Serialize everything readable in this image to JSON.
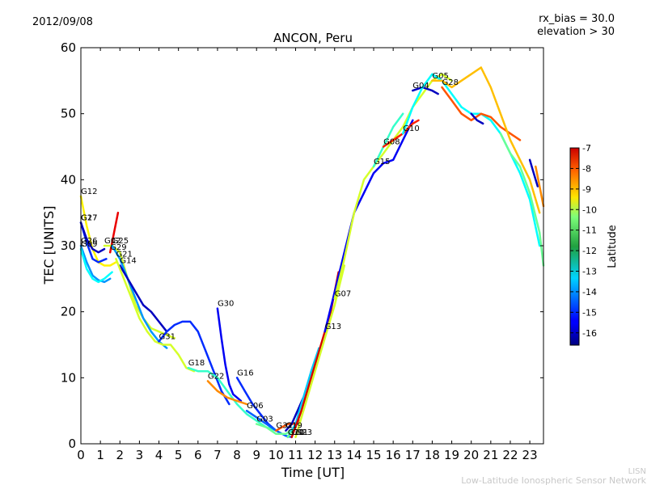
{
  "header": {
    "date": "2012/09/08",
    "rx_bias": "rx_bias = 30.0",
    "elevation": "elevation > 30"
  },
  "footer": {
    "org_abbrev": "LISN",
    "org_name": "Low-Latitude Ionospheric Sensor Network"
  },
  "chart_data": {
    "type": "line",
    "title": "ANCON, Peru",
    "xlabel": "Time [UT]",
    "ylabel": "TEC [UNITS]",
    "xlim": [
      0,
      23.7
    ],
    "ylim": [
      0,
      60
    ],
    "xticks": [
      0,
      1,
      2,
      3,
      4,
      5,
      6,
      7,
      8,
      9,
      10,
      11,
      12,
      13,
      14,
      15,
      16,
      17,
      18,
      19,
      20,
      21,
      22,
      23
    ],
    "yticks": [
      0,
      10,
      20,
      30,
      40,
      50,
      60
    ],
    "grid": false,
    "colorbar": {
      "label": "Latitude",
      "min": -16.6,
      "max": -7,
      "ticks": [
        -7,
        -8,
        -9,
        -10,
        -11,
        -12,
        -13,
        -14,
        -15,
        -16
      ],
      "colormap": "jet"
    },
    "series": [
      {
        "name": "G12",
        "lat": -10.5,
        "x": [
          0,
          0.3,
          0.6,
          0.9,
          1.2,
          1.5,
          1.8
        ],
        "y": [
          37.5,
          33,
          29.5,
          27.5,
          27,
          27,
          27.5
        ]
      },
      {
        "name": "G27",
        "lat": -15.0,
        "x": [
          0,
          0.3,
          0.6,
          0.9,
          1.3
        ],
        "y": [
          33.5,
          30.5,
          28,
          27.5,
          28
        ]
      },
      {
        "name": "G17",
        "lat": -16.0,
        "x": [
          0,
          0.3,
          0.6,
          0.9,
          1.2
        ],
        "y": [
          33.5,
          31,
          29.5,
          29,
          29.5
        ]
      },
      {
        "name": "G26",
        "lat": -14.0,
        "x": [
          0,
          0.3,
          0.6,
          0.9,
          1.2,
          1.5
        ],
        "y": [
          30,
          27.5,
          25.5,
          24.8,
          24.5,
          25
        ]
      },
      {
        "name": "G09",
        "lat": -13.0,
        "x": [
          0,
          0.3,
          0.6,
          0.9,
          1.2,
          1.6
        ],
        "y": [
          29.5,
          26.5,
          25,
          24.5,
          25,
          26
        ]
      },
      {
        "name": "G29",
        "lat": -8.0,
        "x": [
          1.5,
          1.7,
          1.9
        ],
        "y": [
          29,
          32,
          35
        ]
      },
      {
        "name": "G02",
        "lat": -11.0,
        "x": [
          1.2,
          1.6,
          2.0,
          2.4,
          2.8,
          3.2,
          3.6,
          4.0,
          4.4,
          4.8
        ],
        "y": [
          30,
          30,
          29,
          25,
          21,
          19,
          17.5,
          17,
          16.5,
          16
        ]
      },
      {
        "name": "G25",
        "lat": -14.0,
        "x": [
          1.6,
          2.0,
          2.4,
          2.8,
          3.2,
          3.6,
          4.0,
          4.4
        ],
        "y": [
          30,
          28,
          25,
          22,
          19,
          17,
          15.5,
          14.5
        ]
      },
      {
        "name": "G14",
        "lat": -16.0,
        "x": [
          2.0,
          2.4,
          2.8,
          3.2,
          3.6,
          4.0,
          4.4
        ],
        "y": [
          27,
          25,
          23,
          21,
          20,
          18.5,
          17
        ]
      },
      {
        "name": "G21",
        "lat": -11.0,
        "x": [
          1.8,
          2.2,
          2.6,
          3.0,
          3.4,
          3.8,
          4.2,
          4.6,
          5.0,
          5.4,
          5.8
        ],
        "y": [
          28,
          25,
          22,
          19,
          17,
          15.5,
          15,
          15,
          13.5,
          11.5,
          11
        ]
      },
      {
        "name": "G31",
        "lat": -15.0,
        "x": [
          4.0,
          4.4,
          4.8,
          5.2,
          5.6,
          6.0,
          6.4,
          6.8,
          7.2,
          7.6
        ],
        "y": [
          15.5,
          17,
          18,
          18.5,
          18.5,
          17,
          14,
          11,
          8,
          6
        ]
      },
      {
        "name": "G18",
        "lat": -12.5,
        "x": [
          5.5,
          6.0,
          6.5,
          7.0,
          7.5,
          8.0,
          8.5,
          9.0,
          9.5,
          10.0
        ],
        "y": [
          11.5,
          11,
          11,
          10,
          8,
          6,
          4.5,
          3.5,
          2.5,
          2
        ]
      },
      {
        "name": "G30",
        "lat": -15.5,
        "x": [
          7.0,
          7.2,
          7.4,
          7.6,
          7.8,
          8.0,
          8.2
        ],
        "y": [
          20.5,
          16,
          12,
          9,
          7.5,
          7,
          6.5
        ]
      },
      {
        "name": "G22",
        "lat": -9.5,
        "x": [
          6.5,
          7.0,
          7.5,
          8.0,
          8.5
        ],
        "y": [
          9.5,
          8,
          7,
          6.5,
          6
        ]
      },
      {
        "name": "G16",
        "lat": -15.0,
        "x": [
          8.0,
          8.4,
          8.8,
          9.2,
          9.6,
          10.0
        ],
        "y": [
          10,
          8,
          6,
          4.5,
          3,
          2
        ]
      },
      {
        "name": "G06",
        "lat": -14.5,
        "x": [
          8.5,
          9.0,
          9.5,
          10.0,
          10.5,
          10.8
        ],
        "y": [
          5,
          4,
          3,
          2,
          1.2,
          1
        ]
      },
      {
        "name": "G03",
        "lat": -12.0,
        "x": [
          9.0,
          9.5,
          10.0,
          10.5,
          11.0
        ],
        "y": [
          3,
          2.5,
          1.5,
          1.5,
          2.5
        ]
      },
      {
        "name": "G32",
        "lat": -9.0,
        "x": [
          10.0,
          10.3,
          10.6,
          10.9,
          11.2
        ],
        "y": [
          2,
          2.5,
          3,
          3,
          3.5
        ]
      },
      {
        "name": "G19",
        "lat": -16.0,
        "x": [
          10.5,
          10.8,
          11.1,
          11.4
        ],
        "y": [
          2,
          3,
          5,
          7
        ]
      },
      {
        "name": "G11",
        "lat": -13.5,
        "x": [
          10.6,
          11.0,
          11.4,
          11.8,
          12.2
        ],
        "y": [
          1,
          3,
          7,
          11,
          14.5
        ]
      },
      {
        "name": "G20",
        "lat": -12.0,
        "x": [
          10.6,
          11.0,
          11.4,
          11.8,
          12.2
        ],
        "y": [
          1,
          2.5,
          6,
          10,
          14
        ]
      },
      {
        "name": "G01",
        "lat": -7.8,
        "x": [
          10.8,
          11.3,
          11.8,
          12.3,
          12.8,
          13.2
        ],
        "y": [
          1,
          5,
          10,
          15,
          20,
          26
        ]
      },
      {
        "name": "G23",
        "lat": -11.0,
        "x": [
          11.0,
          11.5,
          12.0,
          12.5,
          13.0,
          13.5
        ],
        "y": [
          1,
          6,
          11,
          16,
          21,
          27
        ]
      },
      {
        "name": "G13",
        "lat": -15.5,
        "x": [
          12.5,
          13.0,
          13.5,
          14.0,
          14.5,
          15.0,
          15.5,
          16.0,
          16.5,
          17.0
        ],
        "y": [
          17,
          23,
          29,
          35,
          38,
          41,
          42.5,
          43,
          46,
          49
        ]
      },
      {
        "name": "G07",
        "lat": -11.0,
        "x": [
          13.0,
          13.5,
          14.0,
          14.5,
          15.0,
          15.5,
          16.0,
          16.5,
          17.0,
          17.5,
          18.0,
          18.5,
          19.0
        ],
        "y": [
          22,
          28,
          35,
          40,
          42,
          44,
          46,
          48,
          51,
          53,
          55,
          56,
          55
        ]
      },
      {
        "name": "G15",
        "lat": -12.5,
        "x": [
          15.0,
          15.5,
          16.0,
          16.5
        ],
        "y": [
          42,
          45,
          48,
          50
        ]
      },
      {
        "name": "G08",
        "lat": -8.5,
        "x": [
          15.5,
          16.0,
          16.5,
          17.0,
          17.3
        ],
        "y": [
          45,
          46,
          47,
          48.5,
          49
        ]
      },
      {
        "name": "G04",
        "lat": -16.0,
        "x": [
          17.0,
          17.5,
          18.0,
          18.3
        ],
        "y": [
          53.5,
          54,
          53.5,
          53
        ]
      },
      {
        "name": "G10",
        "lat": -13.0,
        "x": [
          16.5,
          17.0,
          17.5,
          18.0,
          18.5,
          19.0,
          19.5,
          20.0,
          20.5,
          21.0,
          21.5,
          22.0,
          22.5,
          23.0,
          23.5
        ],
        "y": [
          47,
          51,
          54,
          56,
          55,
          53,
          51,
          50,
          50,
          49,
          47,
          44,
          41,
          37,
          30
        ]
      },
      {
        "name": "G28",
        "lat": -9.0,
        "x": [
          18.5,
          19.0,
          19.5,
          20.0,
          20.5,
          21.0,
          21.5,
          22.0,
          22.5
        ],
        "y": [
          54,
          52,
          50,
          49,
          50,
          49.5,
          48,
          47,
          46
        ]
      },
      {
        "name": "G05",
        "lat": -10.0,
        "x": [
          18.0,
          18.5,
          19.0,
          19.5,
          20.0,
          20.5,
          21.0,
          21.5,
          22.0,
          22.5,
          23.0,
          23.5
        ],
        "y": [
          55,
          55,
          54,
          55,
          56,
          57,
          54,
          50,
          46,
          43,
          40,
          35
        ]
      },
      {
        "name": "",
        "lat": -16.0,
        "x": [
          20.0,
          20.3,
          20.6
        ],
        "y": [
          50,
          49,
          48.5
        ]
      },
      {
        "name": "",
        "lat": -16.0,
        "x": [
          23.0,
          23.2,
          23.4
        ],
        "y": [
          43,
          41,
          39
        ]
      },
      {
        "name": "",
        "lat": -9.5,
        "x": [
          23.3,
          23.5,
          23.7
        ],
        "y": [
          42,
          39,
          36
        ]
      },
      {
        "name": "",
        "lat": -12.0,
        "x": [
          21.5,
          22.0,
          22.5,
          23.0,
          23.5,
          23.7
        ],
        "y": [
          47,
          44,
          42,
          38,
          32,
          27
        ]
      }
    ]
  }
}
